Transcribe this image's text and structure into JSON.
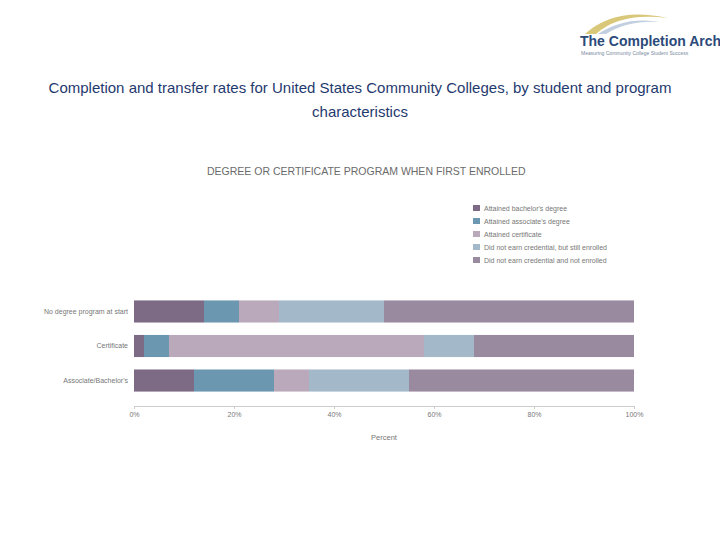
{
  "page": {
    "title": "Completion and transfer rates for United States Community Colleges, by student and program characteristics",
    "logo": "The Completion Arch",
    "tagline": "Measuring Community College Student Success"
  },
  "chart_data": {
    "type": "bar",
    "orientation": "horizontal",
    "stacked": true,
    "title": "DEGREE OR CERTIFICATE PROGRAM WHEN FIRST ENROLLED",
    "xlabel": "Percent",
    "categories": [
      "No degree program at start",
      "Certificate",
      "Associate/Bachelor's"
    ],
    "series": [
      {
        "name": "Attained bachelor's degree",
        "color": "#7d6a85",
        "values": [
          14,
          2,
          12
        ]
      },
      {
        "name": "Attained associate's degree",
        "color": "#6b97b0",
        "values": [
          7,
          5,
          16
        ]
      },
      {
        "name": "Attained certificate",
        "color": "#b9a9ba",
        "values": [
          8,
          51,
          7
        ]
      },
      {
        "name": "Did not earn credential, but still enrolled",
        "color": "#a3b9ca",
        "values": [
          21,
          10,
          20
        ]
      },
      {
        "name": "Did not earn credential and not enrolled",
        "color": "#9a8aa0",
        "values": [
          50,
          32,
          45
        ]
      }
    ],
    "xlim": [
      0,
      100
    ],
    "xticks": [
      {
        "value": 0,
        "label": "0%"
      },
      {
        "value": 20,
        "label": "20%"
      },
      {
        "value": 40,
        "label": "40%"
      },
      {
        "value": 60,
        "label": "60%"
      },
      {
        "value": 80,
        "label": "80%"
      },
      {
        "value": 100,
        "label": "100%"
      }
    ],
    "legend": "top-right"
  }
}
